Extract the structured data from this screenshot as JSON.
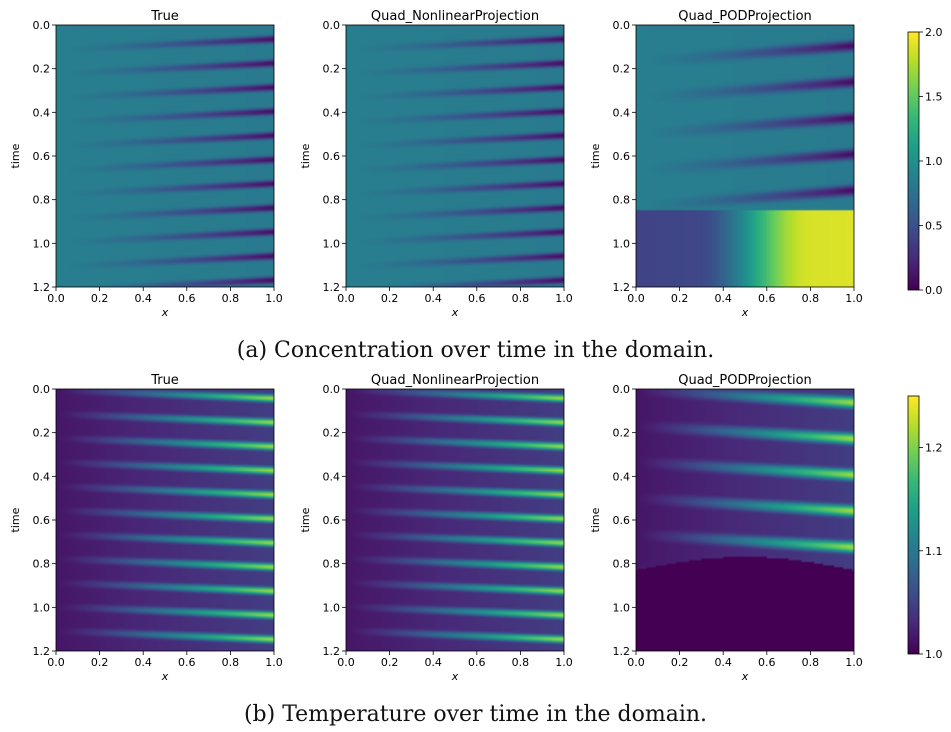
{
  "figure": {
    "captions": [
      "(a) Concentration over time in the domain.",
      "(b) Temperature over time in the domain."
    ]
  },
  "chart_data": [
    {
      "type": "heatmap",
      "row": 0,
      "col": 0,
      "title": "True",
      "xlabel": "x",
      "ylabel": "time",
      "xlim": [
        0,
        1
      ],
      "ylim": [
        1.2,
        0
      ],
      "x_ticks": [
        "0.0",
        "0.2",
        "0.4",
        "0.6",
        "0.8",
        "1.0"
      ],
      "y_ticks": [
        "0.0",
        "0.2",
        "0.4",
        "0.6",
        "0.8",
        "1.0",
        "1.2"
      ],
      "variable": "concentration",
      "field": "oscillating",
      "stripe_count": 9,
      "colormap": "viridis",
      "clim": [
        0,
        2
      ]
    },
    {
      "type": "heatmap",
      "row": 0,
      "col": 1,
      "title": "Quad_NonlinearProjection",
      "xlabel": "x",
      "ylabel": "time",
      "xlim": [
        0,
        1
      ],
      "ylim": [
        1.2,
        0
      ],
      "x_ticks": [
        "0.0",
        "0.2",
        "0.4",
        "0.6",
        "0.8",
        "1.0"
      ],
      "y_ticks": [
        "0.0",
        "0.2",
        "0.4",
        "0.6",
        "0.8",
        "1.0",
        "1.2"
      ],
      "variable": "concentration",
      "field": "oscillating",
      "stripe_count": 9,
      "colormap": "viridis",
      "clim": [
        0,
        2
      ]
    },
    {
      "type": "heatmap",
      "row": 0,
      "col": 2,
      "title": "Quad_PODProjection",
      "xlabel": "x",
      "ylabel": "time",
      "xlim": [
        0,
        1
      ],
      "ylim": [
        1.2,
        0
      ],
      "x_ticks": [
        "0.0",
        "0.2",
        "0.4",
        "0.6",
        "0.8",
        "1.0"
      ],
      "y_ticks": [
        "0.0",
        "0.2",
        "0.4",
        "0.6",
        "0.8",
        "1.0",
        "1.2"
      ],
      "variable": "concentration",
      "field": "oscillating_then_diverges",
      "stripe_count": 6,
      "divergence_time": 0.85,
      "colormap": "viridis",
      "clim": [
        0,
        2
      ],
      "colorbar": {
        "ticks": [
          "0.0",
          "0.5",
          "1.0",
          "1.5",
          "2.0"
        ],
        "range": [
          0,
          2
        ]
      }
    },
    {
      "type": "heatmap",
      "row": 1,
      "col": 0,
      "title": "True",
      "xlabel": "x",
      "ylabel": "time",
      "xlim": [
        0,
        1
      ],
      "ylim": [
        1.2,
        0
      ],
      "x_ticks": [
        "0.0",
        "0.2",
        "0.4",
        "0.6",
        "0.8",
        "1.0"
      ],
      "y_ticks": [
        "0.0",
        "0.2",
        "0.4",
        "0.6",
        "0.8",
        "1.0",
        "1.2"
      ],
      "variable": "temperature",
      "field": "oscillating",
      "stripe_count": 9,
      "colormap": "viridis",
      "clim": [
        1.0,
        1.25
      ]
    },
    {
      "type": "heatmap",
      "row": 1,
      "col": 1,
      "title": "Quad_NonlinearProjection",
      "xlabel": "x",
      "ylabel": "time",
      "xlim": [
        0,
        1
      ],
      "ylim": [
        1.2,
        0
      ],
      "x_ticks": [
        "0.0",
        "0.2",
        "0.4",
        "0.6",
        "0.8",
        "1.0"
      ],
      "y_ticks": [
        "0.0",
        "0.2",
        "0.4",
        "0.6",
        "0.8",
        "1.0",
        "1.2"
      ],
      "variable": "temperature",
      "field": "oscillating",
      "stripe_count": 9,
      "colormap": "viridis",
      "clim": [
        1.0,
        1.25
      ]
    },
    {
      "type": "heatmap",
      "row": 1,
      "col": 2,
      "title": "Quad_PODProjection",
      "xlabel": "x",
      "ylabel": "time",
      "xlim": [
        0,
        1
      ],
      "ylim": [
        1.2,
        0
      ],
      "x_ticks": [
        "0.0",
        "0.2",
        "0.4",
        "0.6",
        "0.8",
        "1.0"
      ],
      "y_ticks": [
        "0.0",
        "0.2",
        "0.4",
        "0.6",
        "0.8",
        "1.0",
        "1.2"
      ],
      "variable": "temperature",
      "field": "oscillating_then_diverges",
      "stripe_count": 6,
      "divergence_time": 0.83,
      "colormap": "viridis",
      "clim": [
        1.0,
        1.25
      ],
      "colorbar": {
        "ticks": [
          "1.0",
          "1.1",
          "1.2"
        ],
        "range": [
          1.0,
          1.25
        ]
      }
    }
  ]
}
